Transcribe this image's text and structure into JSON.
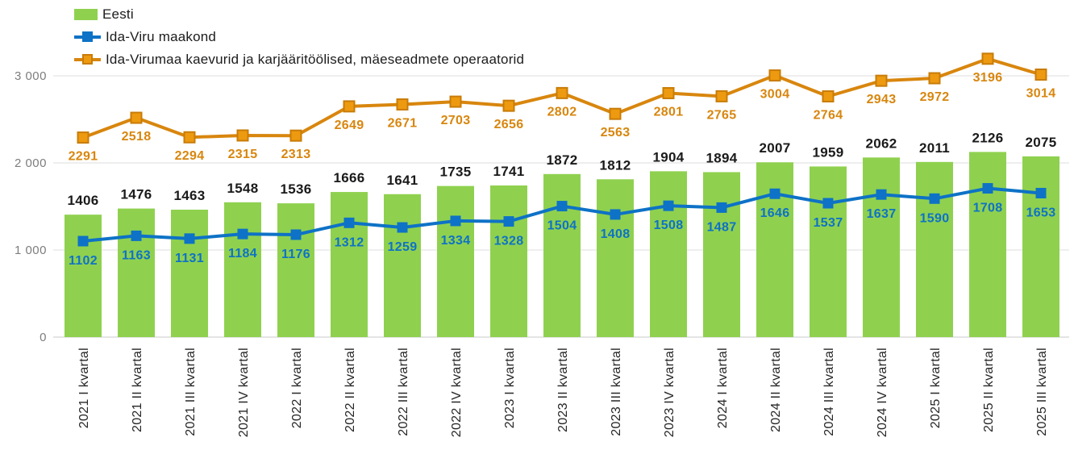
{
  "legend": {
    "items": [
      {
        "label": "Eesti"
      },
      {
        "label": "Ida-Viru maakond"
      },
      {
        "label": "Ida-Virumaa kaevurid ja karjääritöölised, mäeseadmete operaatorid"
      }
    ]
  },
  "chart_data": {
    "type": "bar",
    "subtype": "combo-bar-line",
    "categories": [
      "2021 I kvartal",
      "2021 II kvartal",
      "2021 III kvartal",
      "2021 IV kvartal",
      "2022 I kvartal",
      "2022 II kvartal",
      "2022 III kvartal",
      "2022 IV kvartal",
      "2023 I kvartal",
      "2023 II kvartal",
      "2023 III kvartal",
      "2023 IV kvartal",
      "2024 I kvartal",
      "2024 II kvartal",
      "2024 III kvartal",
      "2024 IV kvartal",
      "2025 I kvartal",
      "2025 II kvartal",
      "2025 III kvartal"
    ],
    "series": [
      {
        "name": "Eesti",
        "type": "bar",
        "color": "#8fd14f",
        "label_color": "#1a1a1a",
        "values": [
          1406,
          1476,
          1463,
          1548,
          1536,
          1666,
          1641,
          1735,
          1741,
          1872,
          1812,
          1904,
          1894,
          2007,
          1959,
          2062,
          2011,
          2126,
          2075
        ]
      },
      {
        "name": "Ida-Viru maakond",
        "type": "line",
        "color": "#0e72c6",
        "marker": "square",
        "values": [
          1102,
          1163,
          1131,
          1184,
          1176,
          1312,
          1259,
          1334,
          1328,
          1504,
          1408,
          1508,
          1487,
          1646,
          1537,
          1637,
          1590,
          1708,
          1653
        ]
      },
      {
        "name": "Ida-Virumaa kaevurid ja karjääritöölised, mäeseadmete operaatorid",
        "type": "line",
        "color": "#d8860e",
        "marker": "square",
        "marker_fill": "#ee9a10",
        "marker_border": "#c87c08",
        "values": [
          2291,
          2518,
          2294,
          2315,
          2313,
          2649,
          2671,
          2703,
          2656,
          2802,
          2563,
          2801,
          2765,
          3004,
          2764,
          2943,
          2972,
          3196,
          3014
        ]
      }
    ],
    "title": "",
    "xlabel": "",
    "ylabel": "",
    "ylim": [
      0,
      3300
    ],
    "y_ticks": [
      {
        "value": 0,
        "label": "0"
      },
      {
        "value": 1000,
        "label": "1 000"
      },
      {
        "value": 2000,
        "label": "2 000"
      },
      {
        "value": 3000,
        "label": "3 000"
      }
    ],
    "grid": true,
    "data_labels": true,
    "legend_position": "top-left"
  },
  "colors": {
    "grid": "#dcdcdc",
    "axis": "#c9c9c9",
    "tick_label": "#7d7d7d",
    "x_label": "#262626",
    "background": "#ffffff"
  }
}
